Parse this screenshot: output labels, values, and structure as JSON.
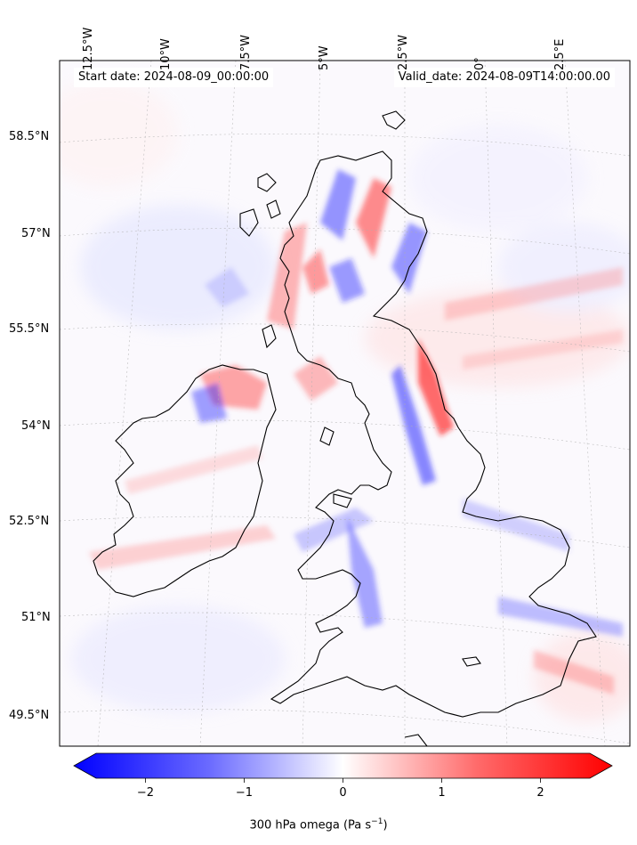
{
  "map": {
    "start_date": "Start date: 2024-08-09_00:00:00",
    "valid_date": "Valid_date: 2024-08-09T14:00:00.00",
    "lon_labels": [
      "12.5°W",
      "10°W",
      "7.5°W",
      "5°W",
      "2.5°W",
      "0°",
      "2.5°E"
    ],
    "lat_labels": [
      "58.5°N",
      "57°N",
      "55.5°N",
      "54°N",
      "52.5°N",
      "51°N",
      "49.5°N"
    ]
  },
  "colorbar": {
    "tick_labels": [
      "−2",
      "−1",
      "0",
      "1",
      "2"
    ],
    "tick_values": [
      -2,
      -1,
      0,
      1,
      2
    ],
    "vmin": -2.5,
    "vmax": 2.5,
    "title_text": "300 hPa omega (Pa s",
    "title_sup": "−1",
    "title_end": ")",
    "colors": {
      "negative": "#0000ff",
      "zero": "#ffffff",
      "positive": "#ff0000"
    }
  }
}
